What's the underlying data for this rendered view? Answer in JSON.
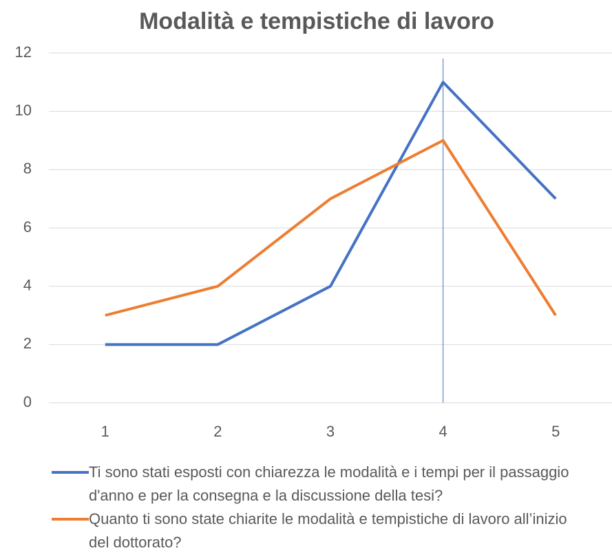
{
  "chart_data": {
    "type": "line",
    "title": "Modalità e tempistiche di lavoro",
    "categories": [
      "1",
      "2",
      "3",
      "4",
      "5"
    ],
    "series": [
      {
        "name": "Ti sono stati esposti con chiarezza le modalità e i tempi per il passaggio d'anno e per la consegna e la discussione della tesi?",
        "color": "#4472c4",
        "values": [
          2,
          2,
          4,
          11,
          7
        ]
      },
      {
        "name": "Quanto ti sono state chiarite le modalità e tempistiche di lavoro all’inizio del dottorato?",
        "color": "#ed7d31",
        "values": [
          3,
          4,
          7,
          9,
          3
        ]
      }
    ],
    "ylim": [
      0,
      12
    ],
    "yticks": [
      0,
      2,
      4,
      6,
      8,
      10,
      12
    ],
    "grid": true,
    "highlight_category": "4",
    "legend": "bottom"
  }
}
